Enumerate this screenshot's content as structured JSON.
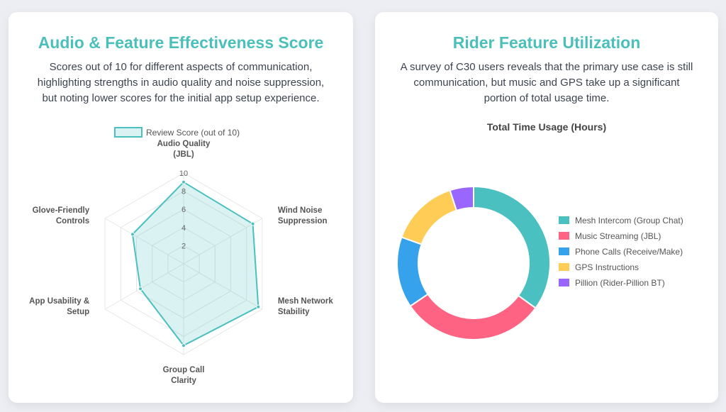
{
  "chart_data": [
    {
      "type": "radar",
      "title": "Audio & Feature Effectiveness Score",
      "description": "Scores out of 10 for different aspects of communication, highlighting strengths in audio quality and noise suppression, but noting lower scores for the initial app setup experience.",
      "legend": "Review Score (out of 10)",
      "legend_position": "top",
      "categories": [
        [
          "Audio Quality",
          "(JBL)"
        ],
        [
          "Wind Noise",
          "Suppression"
        ],
        [
          "Mesh Network",
          "Stability"
        ],
        [
          "Group Call",
          "Clarity"
        ],
        [
          "App Usability &",
          "Setup"
        ],
        [
          "Glove-Friendly",
          "Controls"
        ]
      ],
      "values": [
        9,
        8.8,
        9.5,
        9,
        5.5,
        6.5
      ],
      "rlim": [
        0,
        10
      ],
      "ticks": [
        "2",
        "4",
        "6",
        "8",
        "10"
      ],
      "color": "#4bc0c0"
    },
    {
      "type": "pie",
      "title": "Rider Feature Utilization",
      "description": "A survey of C30 users reveals that the primary use case is still communication, but music and GPS take up a significant portion of total usage time.",
      "chart_title": "Total Time Usage (Hours)",
      "legend_position": "right",
      "labels": [
        "Mesh Intercom (Group Chat)",
        "Music Streaming (JBL)",
        "Phone Calls (Receive/Make)",
        "GPS Instructions",
        "Pillion (Rider-Pillion BT)"
      ],
      "values": [
        35,
        30.5,
        15,
        14.5,
        5
      ],
      "colors": [
        "#4bc0c0",
        "#ff6384",
        "#36a2eb",
        "#ffcd56",
        "#9966ff"
      ]
    }
  ]
}
